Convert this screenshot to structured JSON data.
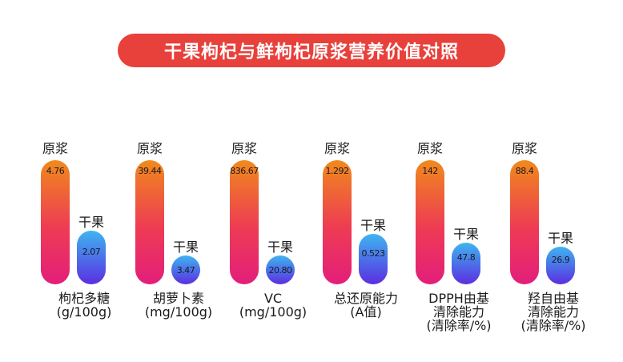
{
  "title": "干果枸杞与鲜枸杞原浆营养价值对照",
  "colors": {
    "title_bg": "#e8403b",
    "fresh_gradient": [
      "#f08a1c",
      "#ee3b54",
      "#e31e7b"
    ],
    "dry_gradient": [
      "#3fb4f0",
      "#4a78ea",
      "#5b2ee0"
    ]
  },
  "chart_data": {
    "type": "bar",
    "title": "干果枸杞与鲜枸杞原浆营养价值对照",
    "series_names": [
      "原浆",
      "干果"
    ],
    "categories": [
      {
        "lines": [
          "枸杞多糖",
          "(g/100g)"
        ],
        "fresh": "4.76",
        "dry": "2.07",
        "fresh_value": 4.76,
        "dry_value": 2.07
      },
      {
        "lines": [
          "胡萝卜素",
          "(mg/100g)"
        ],
        "fresh": "39.44",
        "dry": "3.47",
        "fresh_value": 39.44,
        "dry_value": 3.47
      },
      {
        "lines": [
          "VC",
          "(mg/100g)"
        ],
        "fresh": "836.67",
        "dry": "20.80",
        "fresh_value": 836.67,
        "dry_value": 20.8
      },
      {
        "lines": [
          "总还原能力",
          "(A值)"
        ],
        "fresh": "1.292",
        "dry": "0.523",
        "fresh_value": 1.292,
        "dry_value": 0.523
      },
      {
        "lines": [
          "DPPH由基",
          "清除能力",
          "(清除率/%)"
        ],
        "fresh": "142",
        "dry": "47.8",
        "fresh_value": 142,
        "dry_value": 47.8
      },
      {
        "lines": [
          "羟自由基",
          "清除能力",
          "(清除率/%)"
        ],
        "fresh": "88.4",
        "dry": "26.9",
        "fresh_value": 88.4,
        "dry_value": 26.9
      }
    ],
    "scale": "each category normalized to its own 原浆 value",
    "grid": false,
    "legend": "none"
  }
}
